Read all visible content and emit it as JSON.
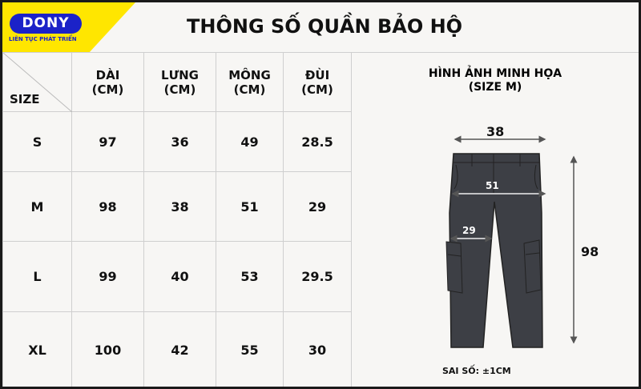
{
  "brand": {
    "name": "DONY",
    "slogan": "LIÊN TỤC PHÁT TRIỂN",
    "color": "#1b22c8",
    "accent": "#ffe600"
  },
  "title": "THÔNG SỐ QUẦN BẢO HỘ",
  "table": {
    "corner": "SIZE",
    "headers": [
      {
        "name": "DÀI",
        "unit": "(CM)"
      },
      {
        "name": "LƯNG",
        "unit": "(CM)"
      },
      {
        "name": "MÔNG",
        "unit": "(CM)"
      },
      {
        "name": "ĐÙI",
        "unit": "(CM)"
      }
    ],
    "rows": [
      {
        "size": "S",
        "values": [
          "97",
          "36",
          "49",
          "28.5"
        ]
      },
      {
        "size": "M",
        "values": [
          "98",
          "38",
          "51",
          "29"
        ]
      },
      {
        "size": "L",
        "values": [
          "99",
          "40",
          "53",
          "29.5"
        ]
      },
      {
        "size": "XL",
        "values": [
          "100",
          "42",
          "55",
          "30"
        ]
      }
    ]
  },
  "illustration": {
    "title": "HÌNH ẢNH MINH HỌA",
    "subtitle": "(SIZE M)",
    "waist": "38",
    "hip": "51",
    "thigh": "29",
    "length": "98",
    "tolerance": "SAI SỐ: ±1CM",
    "pants_color": "#3d3f45"
  }
}
